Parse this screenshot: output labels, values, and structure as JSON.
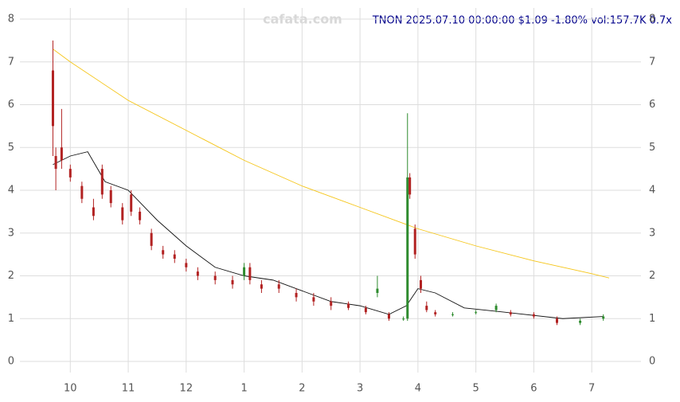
{
  "chart_data": {
    "type": "candlestick",
    "title": "TNON 2025.07.10 00:00:00 $1.09 -1.80% vol:157.7K 0.7x",
    "watermark": "cafata.com",
    "xlim": [
      9.13,
      19.85
    ],
    "xticks": [
      10,
      11,
      12,
      {
        "value": 13,
        "label": "1"
      },
      {
        "value": 14,
        "label": "2"
      },
      {
        "value": 15,
        "label": "3"
      },
      {
        "value": 16,
        "label": "4"
      },
      {
        "value": 17,
        "label": "5"
      },
      {
        "value": 18,
        "label": "6"
      },
      {
        "value": 19,
        "label": "7"
      }
    ],
    "ylim": [
      0,
      8
    ],
    "yticks": [
      0,
      1,
      2,
      3,
      4,
      5,
      6,
      7,
      8
    ],
    "grid": true,
    "up_color": "#2e8b2e",
    "down_color": "#b22222",
    "candles": {
      "x": [
        9.7,
        9.75,
        9.85,
        10.0,
        10.2,
        10.4,
        10.55,
        10.7,
        10.9,
        11.05,
        11.2,
        11.4,
        11.6,
        11.8,
        12.0,
        12.2,
        12.5,
        12.8,
        13.0,
        13.1,
        13.3,
        13.6,
        13.9,
        14.2,
        14.5,
        14.8,
        15.1,
        15.3,
        15.5,
        15.75,
        15.82,
        15.86,
        15.95,
        16.05,
        16.15,
        16.3,
        16.6,
        17.0,
        17.35,
        17.6,
        18.0,
        18.4,
        18.8,
        19.2
      ],
      "open": [
        6.8,
        4.8,
        5.0,
        4.5,
        4.1,
        3.6,
        4.5,
        4.0,
        3.6,
        3.9,
        3.5,
        3.0,
        2.6,
        2.5,
        2.3,
        2.1,
        2.0,
        1.9,
        2.0,
        2.2,
        1.8,
        1.8,
        1.6,
        1.5,
        1.4,
        1.35,
        1.25,
        1.6,
        1.1,
        1.0,
        1.0,
        4.3,
        3.1,
        1.9,
        1.3,
        1.15,
        1.1,
        1.15,
        1.2,
        1.15,
        1.1,
        1.0,
        0.9,
        1.0
      ],
      "high": [
        7.5,
        5.0,
        5.9,
        4.6,
        4.2,
        3.8,
        4.6,
        4.1,
        3.7,
        4.0,
        3.6,
        3.1,
        2.7,
        2.6,
        2.4,
        2.2,
        2.1,
        2.0,
        2.3,
        2.3,
        1.9,
        1.9,
        1.7,
        1.6,
        1.5,
        1.4,
        1.3,
        2.0,
        1.15,
        1.05,
        5.8,
        4.4,
        3.2,
        2.0,
        1.4,
        1.2,
        1.15,
        1.2,
        1.35,
        1.2,
        1.15,
        1.05,
        1.0,
        1.1
      ],
      "low": [
        4.8,
        4.0,
        4.5,
        4.2,
        3.7,
        3.3,
        3.8,
        3.6,
        3.2,
        3.4,
        3.2,
        2.6,
        2.4,
        2.3,
        2.1,
        1.9,
        1.8,
        1.7,
        1.9,
        1.8,
        1.6,
        1.6,
        1.4,
        1.3,
        1.2,
        1.2,
        1.1,
        1.5,
        0.95,
        0.95,
        0.95,
        3.8,
        2.4,
        1.6,
        1.15,
        1.05,
        1.05,
        1.1,
        1.15,
        1.05,
        1.0,
        0.85,
        0.85,
        0.95
      ],
      "close": [
        5.5,
        4.5,
        4.7,
        4.3,
        3.8,
        3.4,
        3.9,
        3.7,
        3.3,
        3.5,
        3.3,
        2.7,
        2.5,
        2.4,
        2.2,
        2.0,
        1.9,
        1.8,
        2.2,
        1.9,
        1.7,
        1.7,
        1.5,
        1.4,
        1.3,
        1.25,
        1.15,
        1.7,
        1.0,
        1.0,
        4.3,
        3.9,
        2.5,
        1.7,
        1.2,
        1.1,
        1.1,
        1.15,
        1.3,
        1.1,
        1.05,
        0.9,
        0.95,
        1.05
      ]
    },
    "lines": [
      {
        "color": "#f5c518",
        "x": [
          9.7,
          10,
          11,
          12,
          13,
          14,
          15,
          16,
          17,
          18,
          19,
          19.3
        ],
        "values": [
          7.3,
          7.0,
          6.1,
          5.4,
          4.7,
          4.1,
          3.6,
          3.1,
          2.7,
          2.35,
          2.05,
          1.95
        ]
      },
      {
        "color": "#111111",
        "x": [
          9.7,
          10,
          10.3,
          10.6,
          11,
          11.5,
          12,
          12.5,
          13,
          13.5,
          14,
          14.5,
          15,
          15.5,
          15.8,
          16,
          16.3,
          16.8,
          17.5,
          18.5,
          19.2
        ],
        "values": [
          4.6,
          4.8,
          4.9,
          4.2,
          4.0,
          3.3,
          2.7,
          2.2,
          2.0,
          1.9,
          1.65,
          1.4,
          1.3,
          1.1,
          1.3,
          1.7,
          1.6,
          1.25,
          1.15,
          1.0,
          1.05
        ]
      }
    ]
  }
}
